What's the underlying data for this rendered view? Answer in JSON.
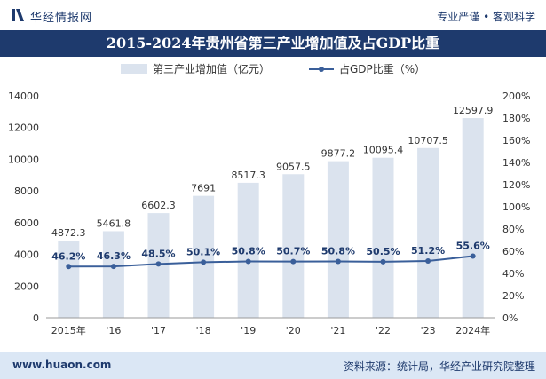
{
  "header": {
    "brand": "华经情报网",
    "slogan": "专业严谨 • 客观科学"
  },
  "title": "2015-2024年贵州省第三产业增加值及占GDP比重",
  "footer": {
    "url": "www.huaon.com",
    "source": "资料来源：统计局，华经产业研究院整理"
  },
  "colors": {
    "brand": "#1e3a6d",
    "bar": "#dbe3ee",
    "line": "#3a5f9a",
    "footer_bg": "#dbe7f5"
  },
  "chart_data": {
    "type": "bar",
    "categories": [
      "2015年",
      "'16",
      "'17",
      "'18",
      "'19",
      "'20",
      "'21",
      "'22",
      "'23",
      "2024年"
    ],
    "series": [
      {
        "name": "第三产业增加值（亿元）",
        "type": "bar",
        "axis": "left",
        "values": [
          4872.3,
          5461.8,
          6602.3,
          7691,
          8517.3,
          9057.5,
          9877.2,
          10095.4,
          10707.5,
          12597.9
        ],
        "labels": [
          "4872.3",
          "5461.8",
          "6602.3",
          "7691",
          "8517.3",
          "9057.5",
          "9877.2",
          "10095.4",
          "10707.5",
          "12597.9"
        ]
      },
      {
        "name": "占GDP比重（%）",
        "type": "line",
        "axis": "right",
        "values": [
          46.2,
          46.3,
          48.5,
          50.1,
          50.8,
          50.7,
          50.8,
          50.5,
          51.2,
          55.6
        ],
        "labels": [
          "46.2%",
          "46.3%",
          "48.5%",
          "50.1%",
          "50.8%",
          "50.7%",
          "50.8%",
          "50.5%",
          "51.2%",
          "55.6%"
        ]
      }
    ],
    "y_left": {
      "lim": [
        0,
        14000
      ],
      "ticks": [
        "0",
        "2000",
        "4000",
        "6000",
        "8000",
        "10000",
        "12000",
        "14000"
      ]
    },
    "y_right": {
      "lim": [
        0,
        200
      ],
      "ticks": [
        "0%",
        "20%",
        "40%",
        "60%",
        "80%",
        "100%",
        "120%",
        "140%",
        "160%",
        "180%",
        "200%"
      ]
    },
    "grid": false,
    "legend_position": "top"
  }
}
